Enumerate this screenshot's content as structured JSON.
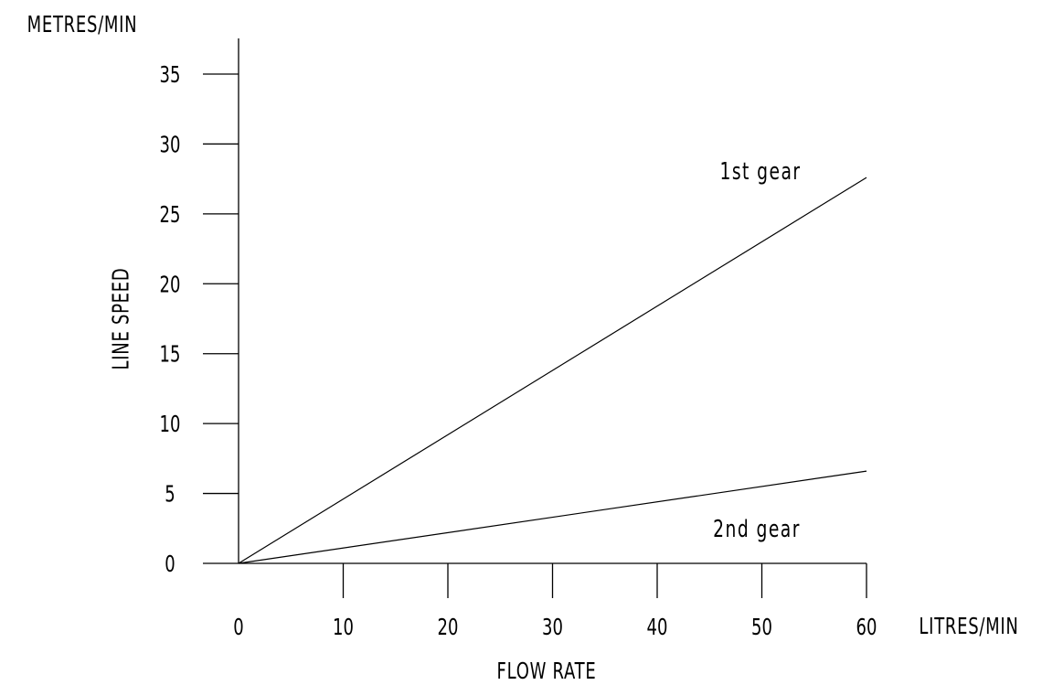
{
  "chart_data": {
    "type": "line",
    "title": "",
    "xlabel": "FLOW RATE",
    "ylabel": "LINE SPEED",
    "x_unit": "LITRES/MIN",
    "y_unit": "METRES/MIN",
    "xlim": [
      0,
      60
    ],
    "ylim": [
      0,
      35
    ],
    "x_ticks": [
      0,
      10,
      20,
      30,
      40,
      50,
      60
    ],
    "y_ticks": [
      0,
      5,
      10,
      15,
      20,
      25,
      30,
      35
    ],
    "grid": false,
    "legend": "none",
    "series": [
      {
        "name": "1st gear",
        "x": [
          0,
          60
        ],
        "y": [
          0,
          27.6
        ]
      },
      {
        "name": "2nd gear",
        "x": [
          0,
          60
        ],
        "y": [
          0,
          6.6
        ]
      }
    ],
    "colors": {
      "axis": "#000000",
      "line": "#000000"
    }
  }
}
